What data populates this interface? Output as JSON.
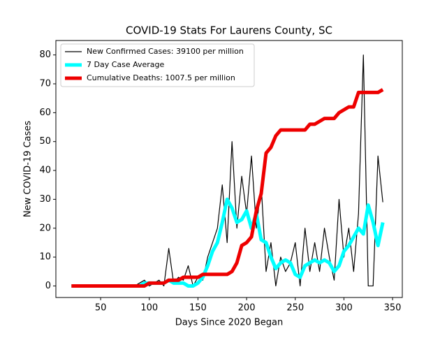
{
  "chart_data": {
    "type": "line",
    "title": "COVID-19 Stats For Laurens County, SC",
    "x_label": "Days Since 2020 Began",
    "y_label": "New COVID-19 Cases",
    "x": [
      20,
      25,
      30,
      35,
      40,
      45,
      50,
      55,
      60,
      65,
      70,
      75,
      80,
      85,
      90,
      95,
      100,
      105,
      110,
      115,
      120,
      125,
      130,
      135,
      140,
      145,
      150,
      155,
      160,
      165,
      170,
      175,
      180,
      185,
      190,
      195,
      200,
      205,
      210,
      215,
      220,
      225,
      230,
      235,
      240,
      245,
      250,
      255,
      260,
      265,
      270,
      275,
      280,
      285,
      290,
      295,
      300,
      305,
      310,
      315,
      320,
      325,
      330,
      335,
      340
    ],
    "series": [
      {
        "name": "New Confirmed Cases: 39100 per million",
        "color": "#000000",
        "width": 1.2,
        "values": [
          0,
          0,
          0,
          0,
          0,
          0,
          0,
          0,
          0,
          0,
          0,
          0,
          0,
          0,
          1,
          2,
          0,
          1,
          2,
          0,
          13,
          1,
          3,
          2,
          7,
          0,
          3,
          2,
          10,
          15,
          20,
          35,
          15,
          50,
          20,
          38,
          25,
          45,
          20,
          35,
          5,
          15,
          0,
          10,
          5,
          8,
          15,
          0,
          20,
          5,
          15,
          5,
          20,
          10,
          2,
          30,
          10,
          20,
          5,
          25,
          80,
          0,
          0,
          45,
          29
        ]
      },
      {
        "name": "7 Day Case Average",
        "color": "#00ffff",
        "width": 5,
        "values": [
          0,
          0,
          0,
          0,
          0,
          0,
          0,
          0,
          0,
          0,
          0,
          0,
          0,
          0,
          0,
          1,
          1,
          1,
          1,
          1,
          2,
          1,
          1,
          1,
          0,
          0,
          1,
          3,
          7,
          12,
          15,
          22,
          30,
          27,
          22,
          23,
          26,
          20,
          25,
          16,
          15,
          10,
          6,
          8,
          9,
          8,
          4,
          3,
          7,
          8,
          9,
          8,
          9,
          8,
          5,
          7,
          12,
          14,
          17,
          20,
          18,
          28,
          22,
          14,
          22
        ]
      },
      {
        "name": "Cumulative Deaths: 1007.5 per million",
        "color": "#ee0000",
        "width": 5,
        "values": [
          0,
          0,
          0,
          0,
          0,
          0,
          0,
          0,
          0,
          0,
          0,
          0,
          0,
          0,
          0,
          0,
          1,
          1,
          1,
          1,
          2,
          2,
          2,
          3,
          3,
          3,
          3,
          4,
          4,
          4,
          4,
          4,
          4,
          5,
          8,
          14,
          15,
          17,
          26,
          32,
          46,
          48,
          52,
          54,
          54,
          54,
          54,
          54,
          54,
          56,
          56,
          57,
          58,
          58,
          58,
          60,
          61,
          62,
          62,
          67,
          67,
          67,
          67,
          67,
          68
        ]
      }
    ],
    "xlim": [
      4,
      360
    ],
    "ylim": [
      -4,
      85
    ],
    "xticks": [
      50,
      100,
      150,
      200,
      250,
      300,
      350
    ],
    "yticks": [
      0,
      10,
      20,
      30,
      40,
      50,
      60,
      70,
      80
    ],
    "legend": "upper left"
  }
}
